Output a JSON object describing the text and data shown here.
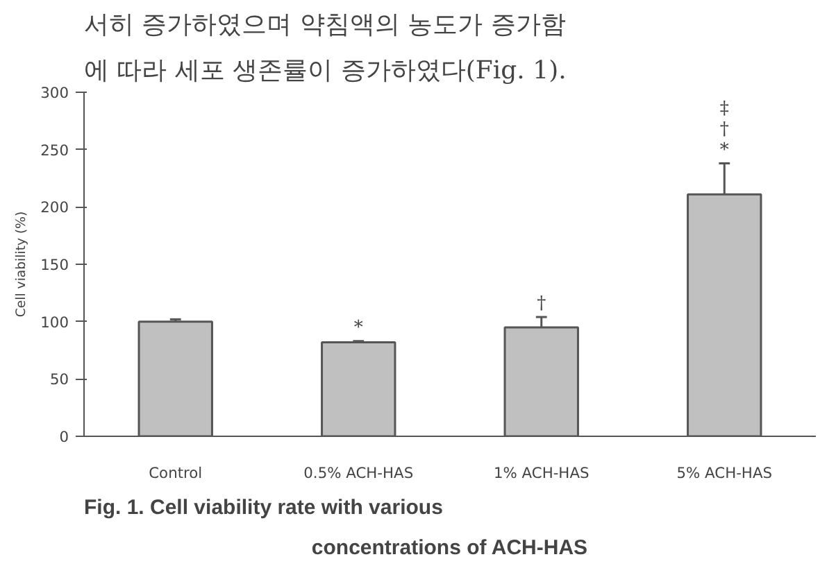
{
  "chart_data": {
    "type": "bar",
    "title": "Fig. 1. Cell viability rate with various concentrations of ACH-HAS",
    "ylabel": "Cell viability (%)",
    "categories": [
      "Control",
      "0.5% ACH-HAS",
      "1% ACH-HAS",
      "5% ACH-HAS"
    ],
    "values": [
      100,
      82,
      95,
      211
    ],
    "errors": [
      2,
      1,
      9,
      27
    ],
    "color": "#c0c0c0",
    "ylim": [
      0,
      300
    ],
    "yticks": [
      0,
      50,
      100,
      150,
      200,
      250,
      300
    ],
    "grid": false,
    "legend": false,
    "annotations": [
      "서히 증가하였으며 약침액의 농도가 증가함",
      "에 따라 세포 생존률이 증가하였다(Fig. 1).",
      {
        "text": "*",
        "x": "0.5% ACH-HAS",
        "y": 83
      },
      {
        "text": "†",
        "x": "1% ACH-HAS",
        "y": 104
      },
      {
        "text": "‡\n†\n*",
        "x": "5% ACH-HAS",
        "y": 238
      }
    ]
  }
}
